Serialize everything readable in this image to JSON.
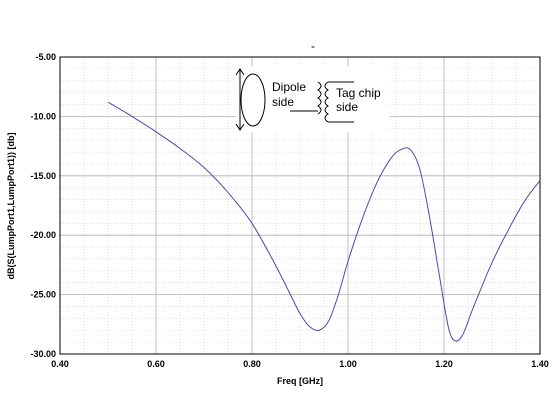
{
  "chart_data": {
    "type": "line",
    "title": "-",
    "xlabel": "Freq [GHz]",
    "ylabel": "dB(S(LumpPort1,LumpPort1)) [db]",
    "xlim": [
      0.4,
      1.4
    ],
    "ylim": [
      -30.0,
      -5.0
    ],
    "x_ticks": [
      "0.40",
      "0.60",
      "0.80",
      "1.00",
      "1.20",
      "1.40"
    ],
    "y_ticks": [
      "-5.00",
      "-10.00",
      "-15.00",
      "-20.00",
      "-25.00",
      "-30.00"
    ],
    "grid": true,
    "line_color": "#4b4ba6",
    "series": [
      {
        "x": [
          0.5,
          0.55,
          0.6,
          0.65,
          0.7,
          0.75,
          0.8,
          0.85,
          0.88,
          0.9,
          0.92,
          0.94,
          0.96,
          0.98,
          1.0,
          1.03,
          1.06,
          1.09,
          1.11,
          1.13,
          1.15,
          1.17,
          1.19,
          1.21,
          1.225,
          1.24,
          1.26,
          1.3,
          1.34,
          1.37,
          1.4
        ],
        "y": [
          -8.8,
          -10.0,
          -11.3,
          -12.7,
          -14.3,
          -16.4,
          -19.0,
          -22.6,
          -25.0,
          -26.6,
          -27.7,
          -28.0,
          -27.2,
          -25.0,
          -22.2,
          -18.6,
          -15.6,
          -13.5,
          -12.8,
          -12.8,
          -14.5,
          -18.5,
          -23.3,
          -27.9,
          -28.9,
          -28.3,
          -26.2,
          -22.3,
          -19.1,
          -17.0,
          -15.4
        ]
      }
    ],
    "inset": {
      "left_label_line1": "Dipole",
      "left_label_line2": "side",
      "right_label_line1": "Tag chip",
      "right_label_line2": "side"
    }
  }
}
